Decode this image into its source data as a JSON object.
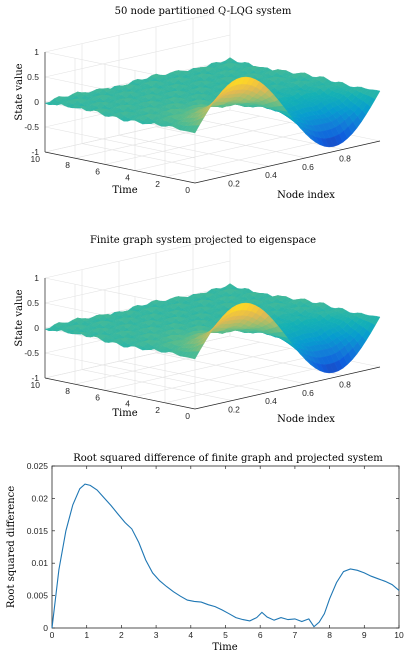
{
  "chart_data": [
    {
      "type": "surface",
      "title": "50 node partitioned Q-LQG system",
      "xlabel": "Node index",
      "ylabel": "Time",
      "zlabel": "State value",
      "x_range": [
        0,
        1
      ],
      "y_range": [
        0,
        10
      ],
      "z_range": [
        -1,
        1
      ],
      "x_ticks": [
        "0.2",
        "0.4",
        "0.6",
        "0.8"
      ],
      "y_ticks": [
        "0",
        "2",
        "4",
        "6",
        "8",
        "10"
      ],
      "z_ticks": [
        "1",
        "0.5",
        "0",
        "-0.5",
        "-1"
      ],
      "grid": true,
      "colormap": "parula",
      "surface": {
        "description_values": {
          "peak_state_value": 0.85,
          "trough_state_value": -0.95,
          "initial_profile": "sin(2*pi*x) at time 0",
          "decayed_value_late_time": 0
        }
      }
    },
    {
      "type": "surface",
      "title": "Finite graph system projected to eigenspace",
      "xlabel": "Node index",
      "ylabel": "Time",
      "zlabel": "State value",
      "x_range": [
        0,
        1
      ],
      "y_range": [
        0,
        10
      ],
      "z_range": [
        -1,
        1
      ],
      "x_ticks": [
        "0.2",
        "0.4",
        "0.6",
        "0.8"
      ],
      "y_ticks": [
        "0",
        "2",
        "4",
        "6",
        "8",
        "10"
      ],
      "z_ticks": [
        "1",
        "0.5",
        "0",
        "-0.5",
        "-1"
      ],
      "grid": true,
      "colormap": "parula",
      "surface": {
        "description_values": {
          "peak_state_value": 0.85,
          "trough_state_value": -0.95,
          "initial_profile": "sin(2*pi*x) at time 0",
          "decayed_value_late_time": 0
        }
      }
    },
    {
      "type": "line",
      "title": "Root squared difference of finite graph and projected system",
      "xlabel": "Time",
      "ylabel": "Root squared difference",
      "xlim": [
        0,
        10
      ],
      "ylim": [
        0,
        0.025
      ],
      "x_ticks": [
        "0",
        "1",
        "2",
        "3",
        "4",
        "5",
        "6",
        "7",
        "8",
        "9",
        "10"
      ],
      "y_ticks": [
        "0",
        "0.005",
        "0.01",
        "0.015",
        "0.02",
        "0.025"
      ],
      "grid": false,
      "color": "#1f77b4",
      "series": [
        {
          "x": [
            0,
            0.2,
            0.4,
            0.6,
            0.8,
            0.95,
            1.1,
            1.3,
            1.5,
            1.7,
            1.9,
            2.1,
            2.3,
            2.5,
            2.7,
            2.9,
            3.1,
            3.3,
            3.5,
            3.7,
            3.9,
            4.1,
            4.3,
            4.5,
            4.7,
            4.9,
            5.1,
            5.3,
            5.5,
            5.7,
            5.9,
            6.05,
            6.2,
            6.4,
            6.6,
            6.8,
            7.0,
            7.2,
            7.4,
            7.55,
            7.7,
            7.85,
            8.0,
            8.2,
            8.4,
            8.6,
            8.8,
            9.0,
            9.2,
            9.4,
            9.6,
            9.8,
            10.0
          ],
          "values": [
            0,
            0.009,
            0.015,
            0.019,
            0.0215,
            0.0222,
            0.022,
            0.0213,
            0.0201,
            0.0189,
            0.0176,
            0.0163,
            0.0153,
            0.0132,
            0.0105,
            0.0085,
            0.0073,
            0.0064,
            0.0056,
            0.0049,
            0.0043,
            0.0041,
            0.004,
            0.0036,
            0.0033,
            0.0028,
            0.0022,
            0.0016,
            0.0013,
            0.0011,
            0.0016,
            0.0024,
            0.0017,
            0.0012,
            0.0016,
            0.0013,
            0.0014,
            0.001,
            0.0014,
            0.0002,
            0.0009,
            0.0022,
            0.0045,
            0.007,
            0.0087,
            0.0091,
            0.0089,
            0.0085,
            0.008,
            0.0076,
            0.0072,
            0.0067,
            0.0058
          ]
        }
      ]
    }
  ]
}
